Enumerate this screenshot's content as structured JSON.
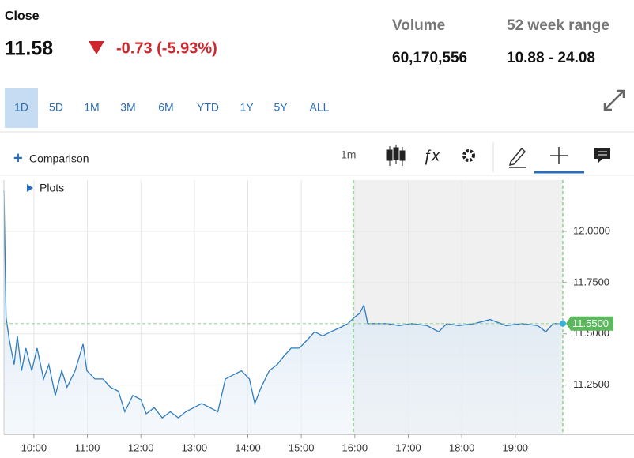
{
  "header": {
    "close_label": "Close",
    "price": "11.58",
    "change": "-0.73 (-5.93%)",
    "volume_label": "Volume",
    "volume": "60,170,556",
    "range_label": "52 week range",
    "range": "10.88 - 24.08"
  },
  "tabs": [
    "1D",
    "5D",
    "1M",
    "3M",
    "6M",
    "YTD",
    "1Y",
    "5Y",
    "ALL"
  ],
  "toolbar": {
    "comparison": "Comparison",
    "interval": "1m",
    "plots": "Plots"
  },
  "chart_data": {
    "type": "line",
    "color": "#2f7dc0",
    "grid": true,
    "x": [
      9.44,
      9.48,
      9.54,
      9.63,
      9.69,
      9.77,
      9.85,
      9.96,
      10.06,
      10.18,
      10.28,
      10.4,
      10.52,
      10.62,
      10.77,
      10.92,
      10.99,
      11.14,
      11.29,
      11.43,
      11.58,
      11.7,
      11.85,
      12.0,
      12.1,
      12.25,
      12.4,
      12.55,
      12.7,
      12.84,
      12.99,
      13.14,
      13.29,
      13.44,
      13.58,
      13.73,
      13.88,
      14.03,
      14.13,
      14.25,
      14.4,
      14.55,
      14.67,
      14.81,
      14.96,
      15.11,
      15.25,
      15.4,
      15.55,
      15.72,
      15.87,
      15.99,
      16.09,
      16.17,
      16.24,
      16.39,
      16.61,
      16.83,
      17.06,
      17.35,
      17.57,
      17.72,
      17.94,
      18.24,
      18.53,
      18.83,
      19.12,
      19.42,
      19.57,
      19.71,
      19.86
    ],
    "values": [
      12.2,
      11.58,
      11.47,
      11.35,
      11.49,
      11.32,
      11.43,
      11.32,
      11.43,
      11.28,
      11.35,
      11.2,
      11.32,
      11.24,
      11.32,
      11.45,
      11.32,
      11.28,
      11.28,
      11.24,
      11.22,
      11.12,
      11.2,
      11.18,
      11.11,
      11.14,
      11.09,
      11.12,
      11.09,
      11.12,
      11.14,
      11.16,
      11.14,
      11.12,
      11.28,
      11.3,
      11.32,
      11.28,
      11.16,
      11.24,
      11.32,
      11.35,
      11.39,
      11.43,
      11.43,
      11.47,
      11.51,
      11.49,
      11.51,
      11.53,
      11.55,
      11.58,
      11.6,
      11.64,
      11.55,
      11.55,
      11.55,
      11.54,
      11.55,
      11.54,
      11.51,
      11.55,
      11.54,
      11.55,
      11.57,
      11.54,
      11.55,
      11.54,
      11.51,
      11.55,
      11.55
    ],
    "xlim": [
      9.44,
      19.89
    ],
    "xticks": [
      {
        "value": 10,
        "label": "10:00"
      },
      {
        "value": 11,
        "label": "11:00"
      },
      {
        "value": 12,
        "label": "12:00"
      },
      {
        "value": 13,
        "label": "13:00"
      },
      {
        "value": 14,
        "label": "14:00"
      },
      {
        "value": 15,
        "label": "15:00"
      },
      {
        "value": 16,
        "label": "16:00"
      },
      {
        "value": 17,
        "label": "17:00"
      },
      {
        "value": 18,
        "label": "18:00"
      },
      {
        "value": 19,
        "label": "19:00"
      }
    ],
    "ylim": [
      11.01,
      12.25
    ],
    "yticks": [
      {
        "value": 11.25,
        "label": "11.2500"
      },
      {
        "value": 11.5,
        "label": "11.5000"
      },
      {
        "value": 11.75,
        "label": "11.7500"
      },
      {
        "value": 12.0,
        "label": "12.0000"
      }
    ],
    "last_value": {
      "value": 11.55,
      "label": "11.5500"
    }
  }
}
